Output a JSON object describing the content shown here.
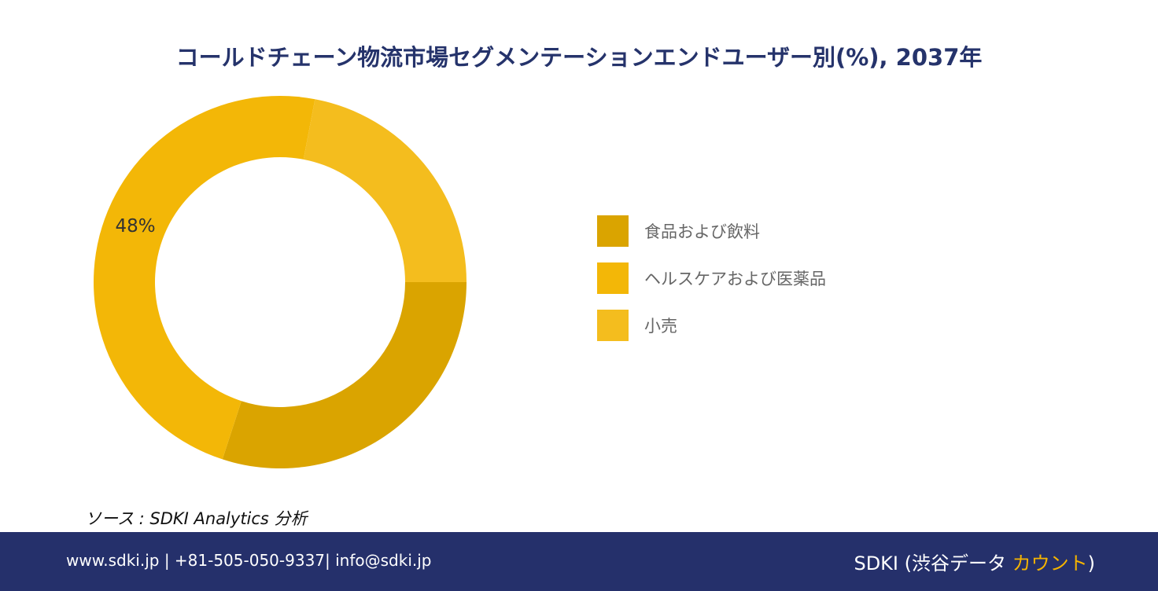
{
  "chart_data": {
    "type": "pie",
    "title": "コールドチェーン物流市場セグメンテーションエンドユーザー別(%), 2037年",
    "categories": [
      "食品および飲料",
      "ヘルスケアおよび医薬品",
      "小売"
    ],
    "values": [
      30,
      48,
      22
    ],
    "colors": [
      "#daa400",
      "#f3b707",
      "#f4bd1e"
    ],
    "data_labels": [
      "",
      "48%",
      ""
    ],
    "donut": true,
    "legend_position": "right"
  },
  "source": "ソース : SDKI Analytics 分析",
  "footer": {
    "contact": "www.sdki.jp | +81-505-050-9337| info@sdki.jp",
    "brand_main": "SDKI (渋谷データ ",
    "brand_accent": "カウント",
    "brand_end": ")"
  }
}
